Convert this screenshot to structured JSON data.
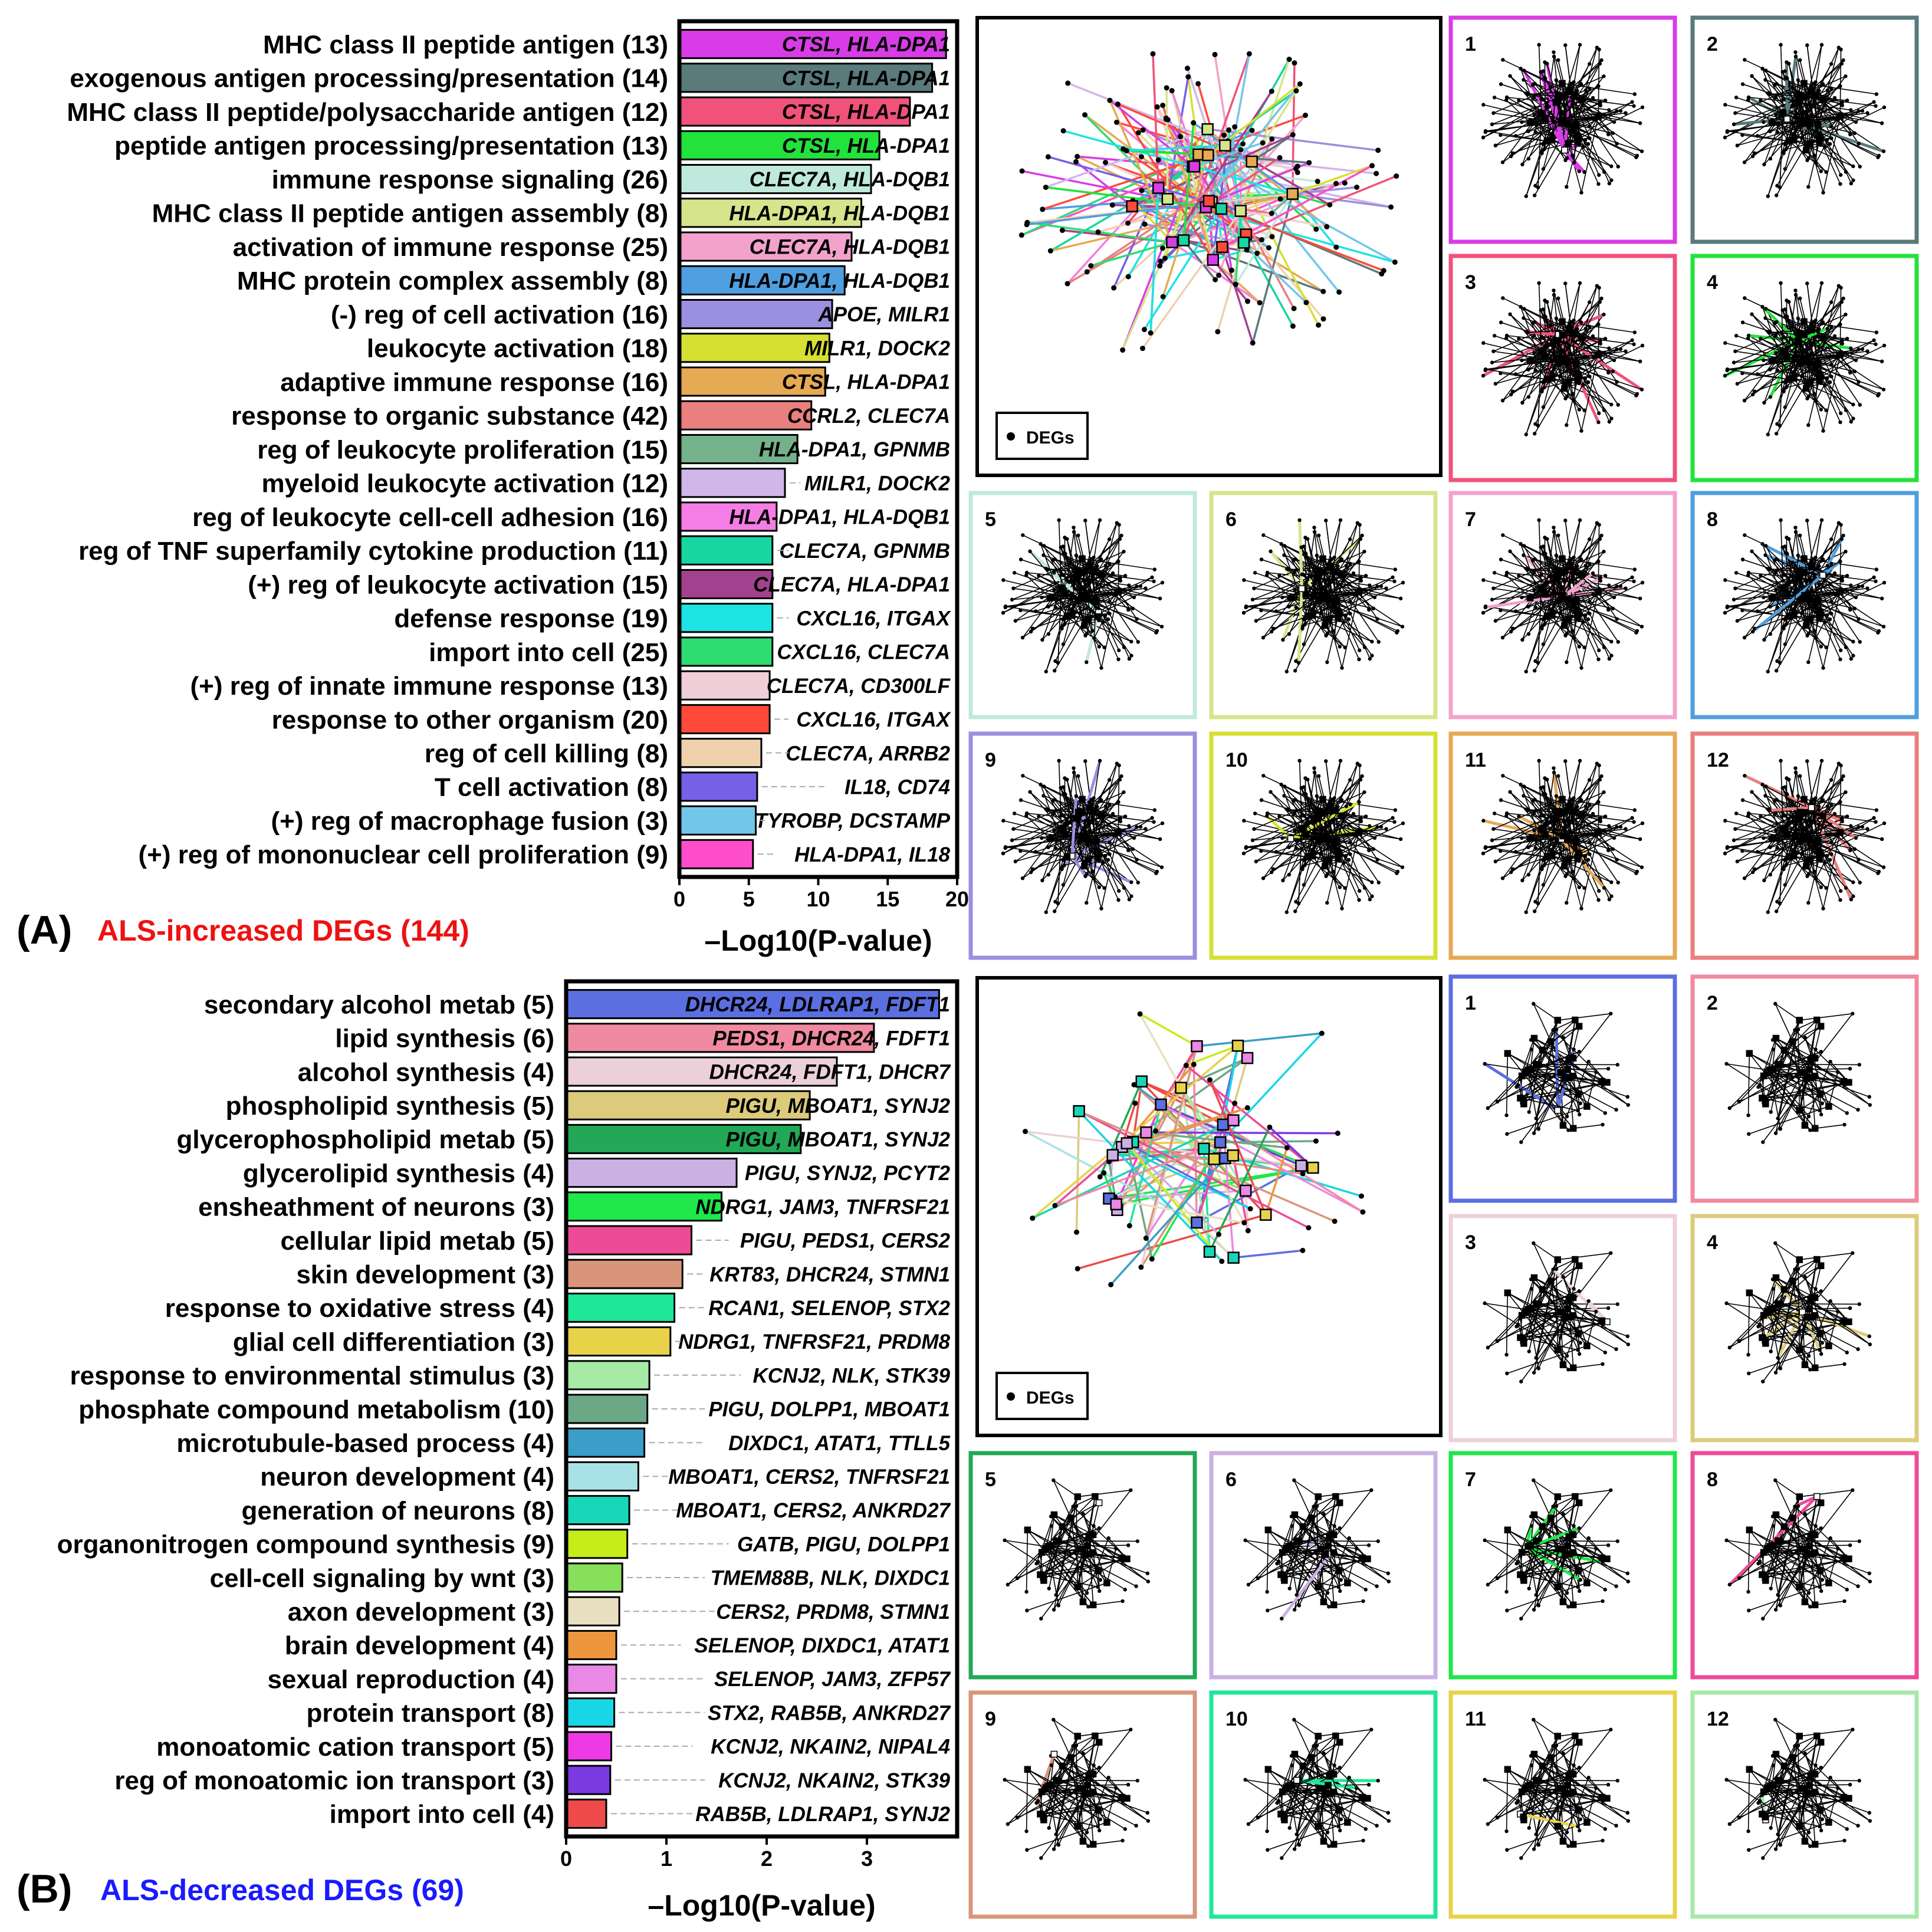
{
  "panelA": {
    "letter": "(A)",
    "caption": "ALS-increased DEGs (144)",
    "caption_color": "#ee1111",
    "legend_label": "DEGs",
    "subpanel_labels": [
      "1",
      "2",
      "3",
      "4",
      "5",
      "6",
      "7",
      "8",
      "9",
      "10",
      "11",
      "12"
    ]
  },
  "panelB": {
    "letter": "(B)",
    "caption": "ALS-decreased DEGs (69)",
    "caption_color": "#1a1aff",
    "legend_label": "DEGs",
    "subpanel_labels": [
      "1",
      "2",
      "3",
      "4",
      "5",
      "6",
      "7",
      "8",
      "9",
      "10",
      "11",
      "12"
    ]
  },
  "chart_data": [
    {
      "type": "bar",
      "orientation": "horizontal",
      "title": "",
      "xlabel": "–Log10(P-value)",
      "ylabel": "",
      "xlim": [
        0,
        20
      ],
      "xticks": [
        "0",
        "5",
        "10",
        "15",
        "20"
      ],
      "categories": [
        "MHC class II peptide antigen (13)",
        "exogenous antigen processing/presentation (14)",
        "MHC class II peptide/polysaccharide antigen (12)",
        "peptide antigen processing/presentation (13)",
        "immune response signaling (26)",
        "MHC class II peptide antigen assembly (8)",
        "activation of immune response (25)",
        "MHC protein complex assembly (8)",
        "(-) reg of cell activation (16)",
        "leukocyte activation (18)",
        "adaptive immune response (16)",
        "response to organic substance (42)",
        "reg of leukocyte proliferation (15)",
        "myeloid leukocyte activation (12)",
        "reg of leukocyte cell-cell adhesion (16)",
        "reg of TNF superfamily cytokine production (11)",
        "(+) reg of leukocyte activation (15)",
        "defense response (19)",
        "import into cell (25)",
        "(+) reg of innate immune response (13)",
        "response to other organism (20)",
        "reg of cell killing (8)",
        "T cell activation (8)",
        "(+) reg of macrophage fusion (3)",
        "(+) reg of mononuclear cell proliferation (9)"
      ],
      "values": [
        19.2,
        18.2,
        16.6,
        14.4,
        13.8,
        13.1,
        12.4,
        11.9,
        11.0,
        10.8,
        10.5,
        9.5,
        8.5,
        7.6,
        7.0,
        6.7,
        6.7,
        6.7,
        6.7,
        6.5,
        6.5,
        5.9,
        5.6,
        5.5,
        5.3
      ],
      "genes": [
        "CTSL, HLA-DPA1",
        "CTSL, HLA-DPA1",
        "CTSL, HLA-DPA1",
        "CTSL, HLA-DPA1",
        "CLEC7A, HLA-DQB1",
        "HLA-DPA1, HLA-DQB1",
        "CLEC7A, HLA-DQB1",
        "HLA-DPA1, HLA-DQB1",
        "APOE, MILR1",
        "MILR1, DOCK2",
        "CTSL, HLA-DPA1",
        "CCRL2, CLEC7A",
        "HLA-DPA1, GPNMB",
        "MILR1, DOCK2",
        "HLA-DPA1, HLA-DQB1",
        "CLEC7A, GPNMB",
        "CLEC7A, HLA-DPA1",
        "CXCL16, ITGAX",
        "CXCL16, CLEC7A",
        "CLEC7A, CD300LF",
        "CXCL16, ITGAX",
        "CLEC7A, ARRB2",
        "IL18, CD74",
        "TYROBP, DCSTAMP",
        "HLA-DPA1, IL18"
      ],
      "colors": [
        "#d83ce6",
        "#5a7a7c",
        "#f0527a",
        "#22e23c",
        "#bfe9dc",
        "#d6e48c",
        "#f3a2cc",
        "#4f9ee0",
        "#9b8fe0",
        "#d6e033",
        "#e6a954",
        "#ea7f7f",
        "#73b28a",
        "#d1b6ea",
        "#f57de6",
        "#18d6a2",
        "#a2428e",
        "#1ee3e3",
        "#2edc72",
        "#f0cfd8",
        "#ff4a3a",
        "#efd1ae",
        "#7560e6",
        "#72c6ea",
        "#ff4ecb"
      ]
    },
    {
      "type": "bar",
      "orientation": "horizontal",
      "title": "",
      "xlabel": "–Log10(P-value)",
      "ylabel": "",
      "xlim": [
        0,
        3.9
      ],
      "xticks": [
        "0",
        "1",
        "2",
        "3"
      ],
      "categories": [
        "secondary alcohol metab (5)",
        "lipid synthesis (6)",
        "alcohol synthesis (4)",
        "phospholipid synthesis (5)",
        "glycerophospholipid metab (5)",
        "glycerolipid synthesis (4)",
        "ensheathment of neurons (3)",
        "cellular lipid metab (5)",
        "skin development (3)",
        "response to oxidative stress (4)",
        "glial cell differentiation (3)",
        "response to environmental stimulus (3)",
        "phosphate compound metabolism (10)",
        "microtubule-based process (4)",
        "neuron development (4)",
        "generation of neurons (8)",
        "organonitrogen compound synthesis (9)",
        "cell-cell signaling by wnt (3)",
        "axon development (3)",
        "brain development (4)",
        "sexual reproduction (4)",
        "protein transport (8)",
        "monoatomic cation transport (5)",
        "reg of monoatomic ion transport (3)",
        "import into cell (4)"
      ],
      "values": [
        3.72,
        3.07,
        2.7,
        2.43,
        2.34,
        1.7,
        1.55,
        1.25,
        1.16,
        1.08,
        1.04,
        0.83,
        0.81,
        0.78,
        0.72,
        0.63,
        0.61,
        0.56,
        0.53,
        0.5,
        0.5,
        0.48,
        0.45,
        0.44,
        0.4
      ],
      "genes": [
        "DHCR24, LDLRAP1, FDFT1",
        "PEDS1, DHCR24, FDFT1",
        "DHCR24, FDFT1, DHCR7",
        "PIGU, MBOAT1, SYNJ2",
        "PIGU, MBOAT1, SYNJ2",
        "PIGU, SYNJ2, PCYT2",
        "NDRG1, JAM3, TNFRSF21",
        "PIGU, PEDS1, CERS2",
        "KRT83, DHCR24, STMN1",
        "RCAN1, SELENOP, STX2",
        "NDRG1, TNFRSF21, PRDM8",
        "KCNJ2, NLK, STK39",
        "PIGU, DOLPP1, MBOAT1",
        "DIXDC1, ATAT1, TTLL5",
        "MBOAT1, CERS2, TNFRSF21",
        "MBOAT1, CERS2, ANKRD27",
        "GATB, PIGU, DOLPP1",
        "TMEM88B, NLK, DIXDC1",
        "CERS2, PRDM8, STMN1",
        "SELENOP, DIXDC1, ATAT1",
        "SELENOP, JAM3, ZFP57",
        "STX2, RAB5B, ANKRD27",
        "KCNJ2, NKAIN2, NIPAL4",
        "KCNJ2, NKAIN2, STK39",
        "RAB5B, LDLRAP1, SYNJ2"
      ],
      "colors": [
        "#5b6fe0",
        "#f08aa0",
        "#ecd0d8",
        "#dccb7a",
        "#22a856",
        "#cbb0e4",
        "#1ee84a",
        "#ee4a98",
        "#d9957a",
        "#1ee898",
        "#e8d24a",
        "#a6eaa6",
        "#6da886",
        "#3a9ec8",
        "#a8e2e6",
        "#18d6b8",
        "#c6ec1a",
        "#86e05a",
        "#e8e0c0",
        "#ee963e",
        "#ea88e6",
        "#18d6e6",
        "#ee3ae6",
        "#7a3ae0",
        "#ee4a4a"
      ]
    }
  ]
}
